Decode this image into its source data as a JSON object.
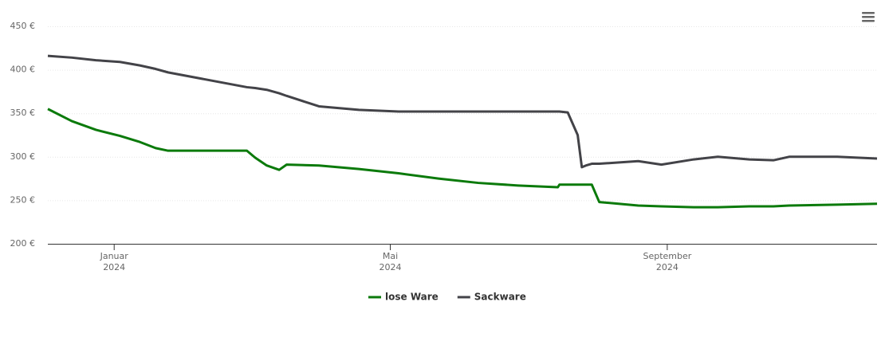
{
  "chart_data": {
    "type": "line",
    "x": [
      2023.92,
      2023.949,
      2023.978,
      2024.007,
      2024.031,
      2024.05,
      2024.065,
      2024.16,
      2024.17,
      2024.184,
      2024.199,
      2024.208,
      2024.247,
      2024.295,
      2024.343,
      2024.391,
      2024.439,
      2024.487,
      2024.535,
      2024.537,
      2024.547,
      2024.559,
      2024.564,
      2024.569,
      2024.576,
      2024.585,
      2024.632,
      2024.66,
      2024.699,
      2024.728,
      2024.766,
      2024.795,
      2024.814,
      2024.872,
      2024.92
    ],
    "series": [
      {
        "name": "lose Ware",
        "color": "#0b7a0b",
        "values": [
          355,
          341,
          331,
          324,
          317,
          310,
          307,
          307,
          299,
          290,
          285,
          291,
          290,
          286,
          281,
          275,
          270,
          267,
          265,
          268,
          268,
          268,
          268,
          268,
          268,
          248,
          244,
          243,
          242,
          242,
          243,
          243,
          244,
          245,
          246
        ]
      },
      {
        "name": "Sackware",
        "color": "#434348",
        "values": [
          416,
          414,
          411,
          409,
          405,
          401,
          397,
          380,
          379,
          377,
          373,
          370,
          358,
          354,
          352,
          352,
          352,
          352,
          352,
          352,
          351,
          325,
          288,
          290,
          292,
          292,
          295,
          291,
          297,
          300,
          297,
          296,
          300,
          300,
          298
        ]
      }
    ],
    "xlim": [
      2023.92,
      2024.92
    ],
    "xticks": [
      {
        "value": 2024.0,
        "label": "Januar\n2024"
      },
      {
        "value": 2024.333,
        "label": "Mai\n2024"
      },
      {
        "value": 2024.667,
        "label": "September\n2024"
      }
    ],
    "ylim": [
      200,
      450
    ],
    "yticks": [
      {
        "value": 200,
        "label": "200 €"
      },
      {
        "value": 250,
        "label": "250 €"
      },
      {
        "value": 300,
        "label": "300 €"
      },
      {
        "value": 350,
        "label": "350 €"
      },
      {
        "value": 400,
        "label": "400 €"
      },
      {
        "value": 450,
        "label": "450 €"
      }
    ],
    "grid": true,
    "legend": "bottom"
  }
}
